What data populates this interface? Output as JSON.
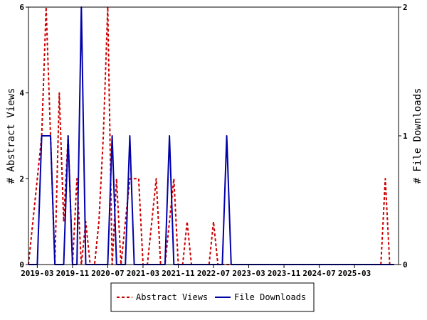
{
  "chart_data": {
    "type": "line",
    "x_tick_labels": [
      "2019-03",
      "2019-11",
      "2020-07",
      "2021-03",
      "2021-11",
      "2022-07",
      "2023-03",
      "2023-11",
      "2024-07",
      "2025-03"
    ],
    "x_start_month": "2019-01",
    "x_end_month": "2025-12",
    "left_axis": {
      "label": "# Abstract Views",
      "ylim": [
        0,
        6
      ],
      "ticks": [
        "0",
        "2",
        "4",
        "6"
      ]
    },
    "right_axis": {
      "label": "# File Downloads",
      "ylim": [
        0,
        2
      ],
      "ticks": [
        "0",
        "1",
        "2"
      ]
    },
    "series": [
      {
        "name": "Abstract Views",
        "axis": "left",
        "color": "#cc0000",
        "style": "dashed",
        "values": [
          0,
          1,
          2,
          3,
          6,
          3,
          0,
          4,
          1,
          3,
          0,
          2,
          0,
          1,
          0,
          0,
          1,
          3,
          6,
          0,
          2,
          0,
          1,
          2,
          2,
          2,
          0,
          0,
          1,
          2,
          0,
          0,
          1,
          2,
          0,
          0,
          1,
          0,
          0,
          0,
          0,
          0,
          1,
          0,
          0,
          0,
          0,
          0,
          0,
          0,
          0,
          0,
          0,
          0,
          0,
          0,
          0,
          0,
          0,
          0,
          0,
          0,
          0,
          0,
          0,
          0,
          0,
          0,
          0,
          0,
          0,
          0,
          0,
          0,
          0,
          0,
          0,
          0,
          0,
          0,
          0,
          2,
          0,
          0
        ]
      },
      {
        "name": "File Downloads",
        "axis": "right",
        "color": "#0000aa",
        "style": "solid",
        "values": [
          0,
          0,
          0,
          1,
          1,
          1,
          0,
          0,
          0,
          1,
          0,
          0,
          2,
          0,
          0,
          0,
          0,
          0,
          0,
          1,
          0,
          0,
          0,
          1,
          0,
          0,
          0,
          0,
          0,
          0,
          0,
          0,
          1,
          0,
          0,
          0,
          0,
          0,
          0,
          0,
          0,
          0,
          0,
          0,
          0,
          1,
          0,
          0,
          0,
          0,
          0,
          0,
          0,
          0,
          0,
          0,
          0,
          0,
          0,
          0,
          0,
          0,
          0,
          0,
          0,
          0,
          0,
          0,
          0,
          0,
          0,
          0,
          0,
          0,
          0,
          0,
          0,
          0,
          0,
          0,
          0,
          0,
          0,
          0
        ]
      }
    ],
    "legend_placement": "bottom-center",
    "grid": false
  }
}
